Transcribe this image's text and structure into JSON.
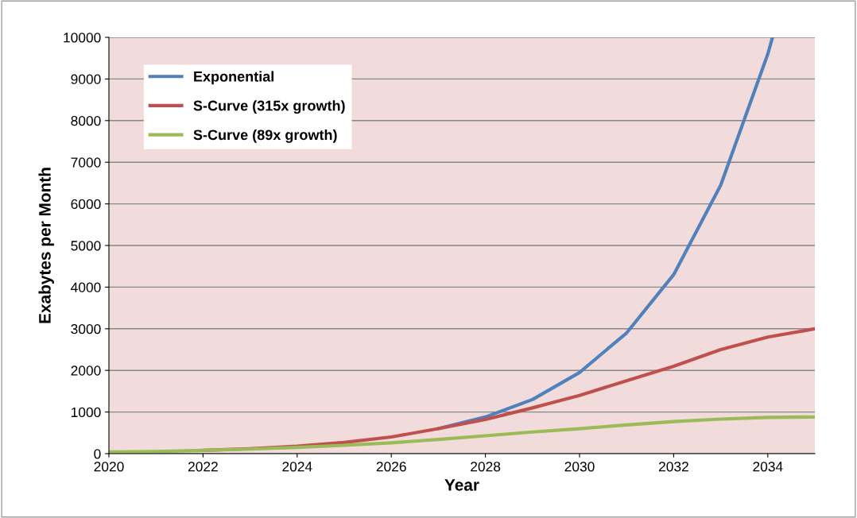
{
  "chart_data": {
    "type": "line",
    "xlabel": "Year",
    "ylabel": "Exabytes per Month",
    "xlim": [
      2020,
      2035
    ],
    "xticks": [
      2020,
      2022,
      2024,
      2026,
      2028,
      2030,
      2032,
      2034
    ],
    "ylim": [
      0,
      10000
    ],
    "yticks": [
      0,
      1000,
      2000,
      3000,
      4000,
      5000,
      6000,
      7000,
      8000,
      9000,
      10000
    ],
    "grid": "y",
    "legend": "top left",
    "marker": "none",
    "line_style": "solid",
    "series": [
      {
        "name": "Exponential",
        "color": "#4f81bd",
        "x": [
          2027,
          2028,
          2029,
          2030,
          2031,
          2032,
          2033,
          2034,
          2034.1
        ],
        "values": [
          600,
          880,
          1300,
          1950,
          2900,
          4300,
          6450,
          9600,
          10000
        ]
      },
      {
        "name": "S-Curve (315x growth)",
        "color": "#c0504d",
        "x": [
          2022,
          2023,
          2024,
          2025,
          2026,
          2027,
          2028,
          2029,
          2030,
          2031,
          2032,
          2033,
          2034,
          2035
        ],
        "values": [
          80,
          120,
          180,
          270,
          400,
          600,
          820,
          1100,
          1400,
          1750,
          2100,
          2500,
          2800,
          3000
        ]
      },
      {
        "name": "S-Curve (89x growth)",
        "color": "#9bbb59",
        "x": [
          2020,
          2021,
          2022,
          2023,
          2024,
          2025,
          2026,
          2027,
          2028,
          2029,
          2030,
          2031,
          2032,
          2033,
          2034,
          2035
        ],
        "values": [
          40,
          50,
          80,
          110,
          150,
          200,
          260,
          340,
          430,
          520,
          600,
          690,
          770,
          830,
          870,
          880
        ]
      }
    ]
  }
}
